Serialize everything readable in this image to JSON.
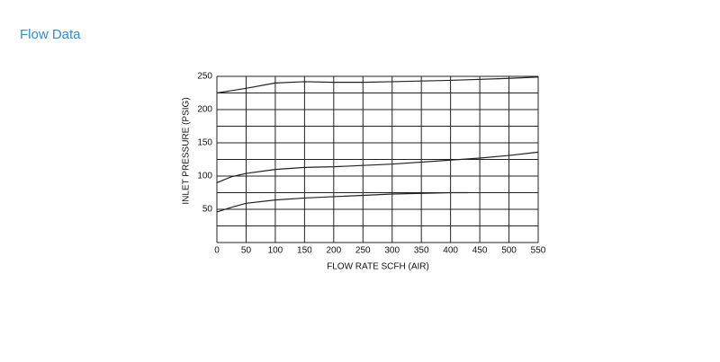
{
  "heading": "Flow Data",
  "chart_data": {
    "type": "line",
    "x_label": "FLOW RATE SCFH (AIR)",
    "y_label": "INLET PRESSURE (PSIG)",
    "xlim": [
      0,
      550
    ],
    "ylim": [
      0,
      250
    ],
    "xticks": [
      0,
      50,
      100,
      150,
      200,
      250,
      300,
      350,
      400,
      450,
      500,
      550
    ],
    "yticks": [
      50,
      100,
      150,
      200,
      250
    ],
    "y_minor_ticks": [
      0,
      25,
      75,
      125,
      175,
      225
    ],
    "grid": true,
    "series": [
      {
        "color": "#222222",
        "x": [
          0,
          50,
          100,
          150,
          200,
          250,
          300,
          400,
          500,
          550
        ],
        "values": [
          225,
          232,
          240,
          242,
          241,
          241,
          242,
          244,
          247,
          249
        ]
      },
      {
        "color": "#222222",
        "x": [
          0,
          25,
          50,
          100,
          150,
          200,
          300,
          400,
          450,
          500,
          550
        ],
        "values": [
          90,
          99,
          104,
          110,
          113,
          114,
          118,
          124,
          127,
          131,
          136
        ]
      },
      {
        "color": "#222222",
        "x": [
          0,
          25,
          50,
          100,
          150,
          200,
          300,
          400,
          430
        ],
        "values": [
          46,
          53,
          59,
          64,
          67,
          69,
          73,
          75,
          75
        ]
      }
    ]
  }
}
